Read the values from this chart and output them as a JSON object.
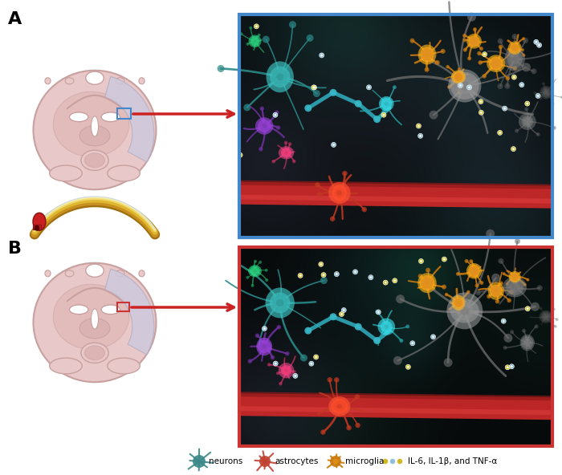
{
  "panel_A_label": "A",
  "panel_B_label": "B",
  "bg_color": "#ffffff",
  "brain_fill": "#e8c8c8",
  "brain_stroke": "#c9a0a0",
  "infarct_fill": "#cccade",
  "infarct_stroke": "#b0adc0",
  "box_A_color": "#4488cc",
  "box_B_color": "#cc3333",
  "arrow_color": "#cc2222",
  "micro_image_A_border": "#4488cc",
  "micro_image_B_border": "#cc3333",
  "legend_texts": [
    "neurons",
    "astrocytes",
    "microglia",
    "IL-6, IL-1β, and TNF-α"
  ],
  "figure_width": 7.0,
  "figure_height": 5.92
}
